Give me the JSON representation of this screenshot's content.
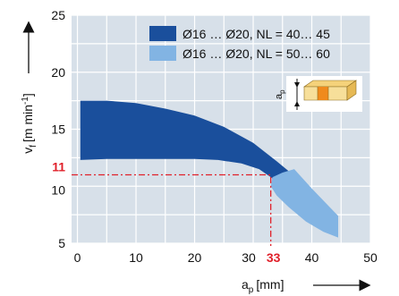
{
  "chart_data": {
    "type": "area",
    "xlabel": "a",
    "xlabel_sub": "p",
    "xlabel_unit": "[mm]",
    "ylabel": "v",
    "ylabel_sub": "f",
    "ylabel_unit": "[m min",
    "ylabel_sup": "-1",
    "ylabel_close": "]",
    "xlim": [
      -1,
      50
    ],
    "ylim": [
      5,
      25
    ],
    "x_ticks": [
      "0",
      "10",
      "20",
      "30",
      "40",
      "50"
    ],
    "y_ticks": [
      "5",
      "10",
      "15",
      "20",
      "25"
    ],
    "x_tick_values": [
      0,
      10,
      20,
      30,
      40,
      50
    ],
    "y_tick_values": [
      5,
      10,
      15,
      20,
      25
    ],
    "grid": true,
    "legend_position": "top-right",
    "series": [
      {
        "name": "Ø16 … Ø20, NL = 40… 45",
        "color": "#1a4f9c",
        "polygon": [
          [
            0.5,
            17.5
          ],
          [
            5,
            17.5
          ],
          [
            10,
            17.3
          ],
          [
            15,
            16.8
          ],
          [
            20,
            16.2
          ],
          [
            25,
            15.2
          ],
          [
            30,
            13.8
          ],
          [
            34,
            12.2
          ],
          [
            38,
            10.5
          ],
          [
            41.5,
            8.8
          ],
          [
            35,
            9.9
          ],
          [
            33,
            10.8
          ],
          [
            31,
            11.5
          ],
          [
            28,
            12.0
          ],
          [
            24,
            12.3
          ],
          [
            20,
            12.4
          ],
          [
            15,
            12.4
          ],
          [
            10,
            12.4
          ],
          [
            5,
            12.4
          ],
          [
            0.5,
            12.3
          ]
        ]
      },
      {
        "name": "Ø16 … Ø20, NL = 50… 60",
        "color": "#82b4e3",
        "polygon": [
          [
            37,
            11.5
          ],
          [
            40,
            9.8
          ],
          [
            43,
            8.2
          ],
          [
            44.5,
            7.4
          ],
          [
            44.5,
            5.5
          ],
          [
            42,
            6.0
          ],
          [
            39,
            6.9
          ],
          [
            36,
            8.2
          ],
          [
            34,
            9.2
          ],
          [
            33,
            10.0
          ],
          [
            33.3,
            10.8
          ],
          [
            35,
            11.2
          ]
        ]
      }
    ],
    "annotation": {
      "x": 33,
      "y": 11,
      "x_label": "33",
      "y_label": "11",
      "color": "#e0202a"
    },
    "inset_label": "a",
    "inset_label_sub": "p"
  }
}
